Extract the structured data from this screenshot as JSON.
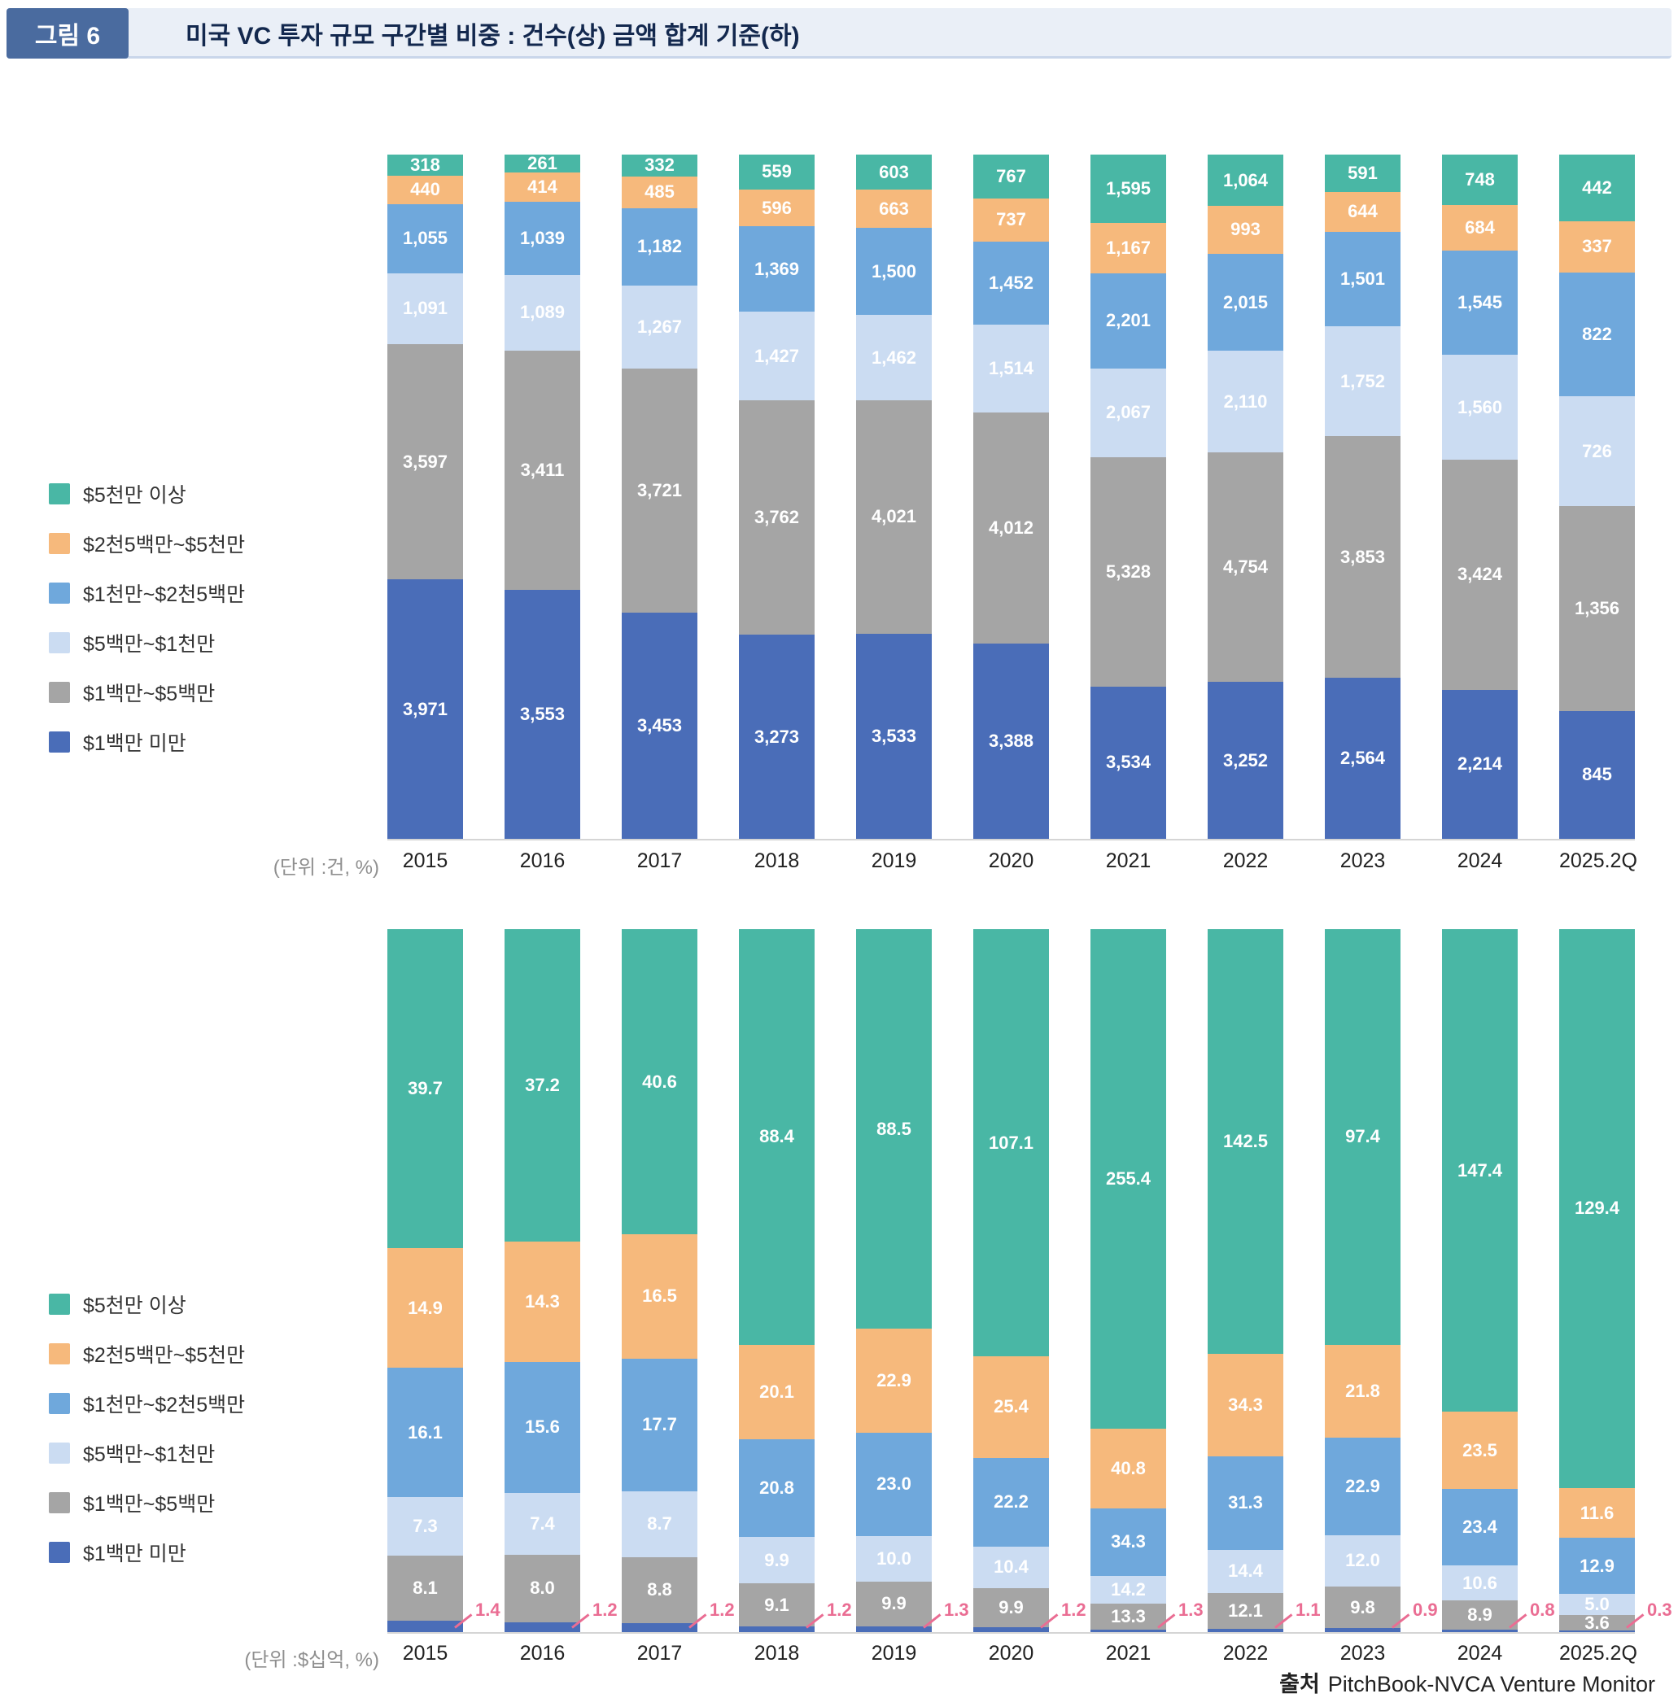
{
  "header": {
    "badge": "그림 6",
    "title": "미국 VC 투자 규모 구간별 비중 : 건수(상) 금액 합계 기준(하)"
  },
  "footer": {
    "source_label": "출처",
    "source_text": "PitchBook-NVCA Venture Monitor"
  },
  "colors": {
    "over_50m": "#49B7A5",
    "25m_50m": "#F6B97C",
    "10m_25m": "#6FA8DC",
    "5m_10m": "#CBDCF2",
    "1m_5m": "#A5A5A5",
    "under_1m": "#4A6DB8",
    "callout_pink": "#EA6D93"
  },
  "chart_data": [
    {
      "type": "bar",
      "stacked": "percent",
      "basis": "건수(상)",
      "unit_label": "(단위 :건, %)",
      "label_format": "comma",
      "legend_position": "left",
      "grid": false,
      "categories": [
        "2015",
        "2016",
        "2017",
        "2018",
        "2019",
        "2020",
        "2021",
        "2022",
        "2023",
        "2024",
        "2025.2Q"
      ],
      "series": [
        {
          "name": "$5천만 이상",
          "color": "#49B7A5",
          "values": [
            318,
            261,
            332,
            559,
            603,
            767,
            1595,
            1064,
            591,
            748,
            442
          ]
        },
        {
          "name": "$2천5백만~$5천만",
          "color": "#F6B97C",
          "values": [
            440,
            414,
            485,
            596,
            663,
            737,
            1167,
            993,
            644,
            684,
            337
          ]
        },
        {
          "name": "$1천만~$2천5백만",
          "color": "#6FA8DC",
          "values": [
            1055,
            1039,
            1182,
            1369,
            1500,
            1452,
            2201,
            2015,
            1501,
            1545,
            822
          ]
        },
        {
          "name": "$5백만~$1천만",
          "color": "#CBDCF2",
          "values": [
            1091,
            1089,
            1267,
            1427,
            1462,
            1514,
            2067,
            2110,
            1752,
            1560,
            726
          ]
        },
        {
          "name": "$1백만~$5백만",
          "color": "#A5A5A5",
          "values": [
            3597,
            3411,
            3721,
            3762,
            4021,
            4012,
            5328,
            4754,
            3853,
            3424,
            1356
          ]
        },
        {
          "name": "$1백만 미만",
          "color": "#4A6DB8",
          "values": [
            3971,
            3553,
            3453,
            3273,
            3533,
            3388,
            3534,
            3252,
            2564,
            2214,
            845
          ]
        }
      ]
    },
    {
      "type": "bar",
      "stacked": "percent",
      "basis": "금액 합계(하)",
      "unit_label": "(단위 :$십억, %)",
      "label_format": "fixed1",
      "legend_position": "left",
      "grid": false,
      "callout_series": "$1백만 미만",
      "callout_color": "#EA6D93",
      "categories": [
        "2015",
        "2016",
        "2017",
        "2018",
        "2019",
        "2020",
        "2021",
        "2022",
        "2023",
        "2024",
        "2025.2Q"
      ],
      "series": [
        {
          "name": "$5천만 이상",
          "color": "#49B7A5",
          "values": [
            39.7,
            37.2,
            40.6,
            88.4,
            88.5,
            107.1,
            255.4,
            142.5,
            97.4,
            147.4,
            129.4
          ]
        },
        {
          "name": "$2천5백만~$5천만",
          "color": "#F6B97C",
          "values": [
            14.9,
            14.3,
            16.5,
            20.1,
            22.9,
            25.4,
            40.8,
            34.3,
            21.8,
            23.5,
            11.6
          ]
        },
        {
          "name": "$1천만~$2천5백만",
          "color": "#6FA8DC",
          "values": [
            16.1,
            15.6,
            17.7,
            20.8,
            23.0,
            22.2,
            34.3,
            31.3,
            22.9,
            23.4,
            12.9
          ]
        },
        {
          "name": "$5백만~$1천만",
          "color": "#CBDCF2",
          "values": [
            7.3,
            7.4,
            8.7,
            9.9,
            10.0,
            10.4,
            14.2,
            14.4,
            12.0,
            10.6,
            5.0
          ]
        },
        {
          "name": "$1백만~$5백만",
          "color": "#A5A5A5",
          "values": [
            8.1,
            8.0,
            8.8,
            9.1,
            9.9,
            9.9,
            13.3,
            12.1,
            9.8,
            8.9,
            3.6
          ]
        },
        {
          "name": "$1백만 미만",
          "color": "#4A6DB8",
          "values": [
            1.4,
            1.2,
            1.2,
            1.2,
            1.3,
            1.2,
            1.3,
            1.1,
            0.9,
            0.8,
            0.3
          ]
        }
      ]
    }
  ]
}
